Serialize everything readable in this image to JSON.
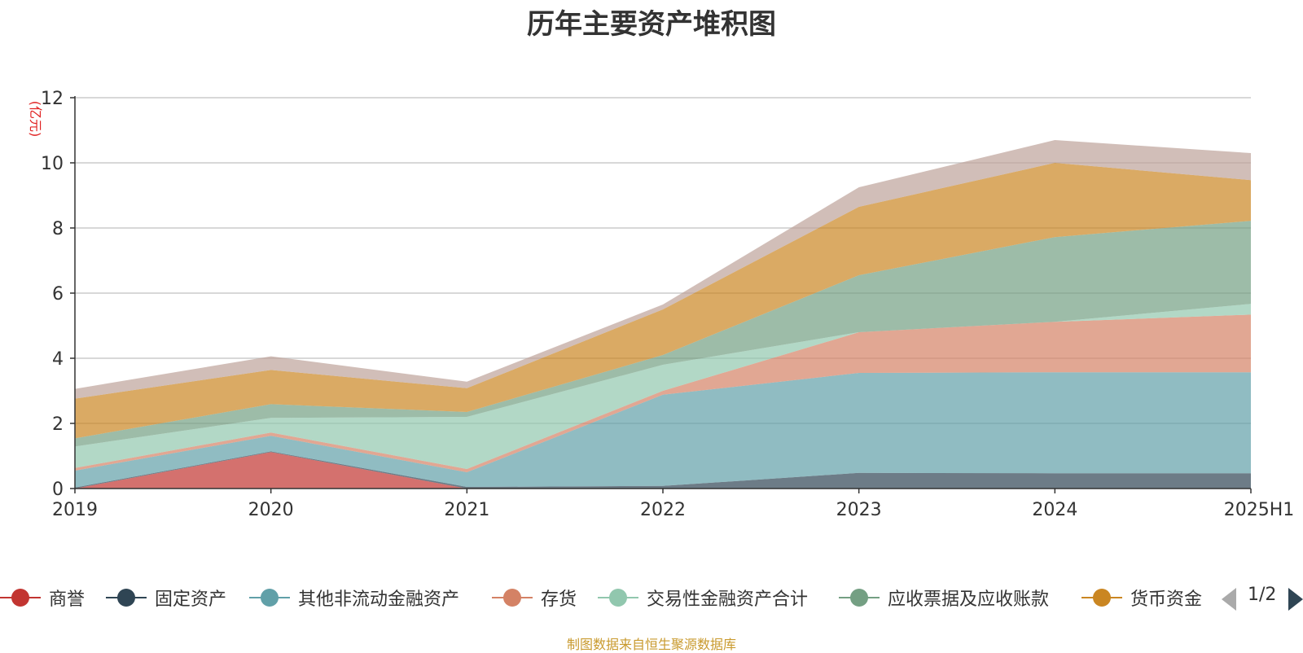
{
  "title": "历年主要资产堆积图",
  "source_note": "制图数据来自恒生聚源数据库",
  "legend_pager": "1/2",
  "chart_data": {
    "type": "area",
    "stacked": true,
    "title": "历年主要资产堆积图",
    "ylabel": "(亿元)",
    "ylim": [
      0,
      12
    ],
    "yticks": [
      "0",
      "2",
      "4",
      "6",
      "8",
      "10",
      "12"
    ],
    "categories": [
      "2019",
      "2020",
      "2021",
      "2022",
      "2023",
      "2024",
      "2025H1"
    ],
    "grid": true,
    "legend_position": "bottom",
    "series": [
      {
        "name": "商誉",
        "color": "#c23531",
        "values": [
          0.0,
          1.12,
          0.0,
          0.0,
          0.0,
          0.0,
          0.0
        ]
      },
      {
        "name": "固定资产",
        "color": "#2f4554",
        "values": [
          0.03,
          0.02,
          0.05,
          0.08,
          0.48,
          0.47,
          0.47
        ]
      },
      {
        "name": "其他非流动金融资产",
        "color": "#61a0a8",
        "values": [
          0.52,
          0.48,
          0.45,
          2.8,
          3.07,
          3.1,
          3.1
        ]
      },
      {
        "name": "存货",
        "color": "#d48265",
        "values": [
          0.08,
          0.1,
          0.1,
          0.12,
          1.25,
          1.55,
          1.77
        ]
      },
      {
        "name": "交易性金融资产合计",
        "color": "#91c7ae",
        "values": [
          0.66,
          0.45,
          1.6,
          0.8,
          0.0,
          0.0,
          0.33
        ]
      },
      {
        "name": "应收票据及应收账款",
        "color": "#749f83",
        "values": [
          0.25,
          0.42,
          0.15,
          0.3,
          1.75,
          2.6,
          2.55
        ]
      },
      {
        "name": "货币资金",
        "color": "#ca8622",
        "values": [
          1.22,
          1.05,
          0.73,
          1.4,
          2.1,
          2.28,
          1.25
        ]
      },
      {
        "color": "#bda29a",
        "values": [
          0.3,
          0.42,
          0.2,
          0.15,
          0.6,
          0.7,
          0.83
        ]
      }
    ]
  }
}
